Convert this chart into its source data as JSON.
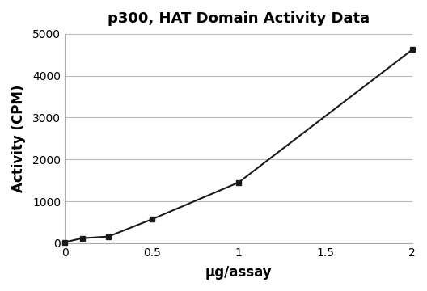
{
  "title": "p300, HAT Domain Activity Data",
  "xlabel": "μg/assay",
  "ylabel": "Activity (CPM)",
  "x_data": [
    0.0,
    0.1,
    0.25,
    0.5,
    1.0,
    2.0
  ],
  "y_data": [
    25,
    120,
    160,
    570,
    1450,
    4620
  ],
  "xlim": [
    0,
    2.0
  ],
  "ylim": [
    0,
    5000
  ],
  "xticks": [
    0,
    0.5,
    1.0,
    1.5,
    2.0
  ],
  "xtick_labels": [
    "0",
    "0.5",
    "1",
    "1.5",
    "2"
  ],
  "yticks": [
    0,
    1000,
    2000,
    3000,
    4000,
    5000
  ],
  "ytick_labels": [
    "0",
    "1000",
    "2000",
    "3000",
    "4000",
    "5000"
  ],
  "line_color": "#1a1a1a",
  "marker": "s",
  "marker_size": 4,
  "marker_color": "#1a1a1a",
  "line_width": 1.5,
  "grid_color": "#bbbbbb",
  "bg_color": "#ffffff",
  "fig_bg_color": "#ffffff",
  "title_fontsize": 13,
  "label_fontsize": 12,
  "tick_fontsize": 10
}
